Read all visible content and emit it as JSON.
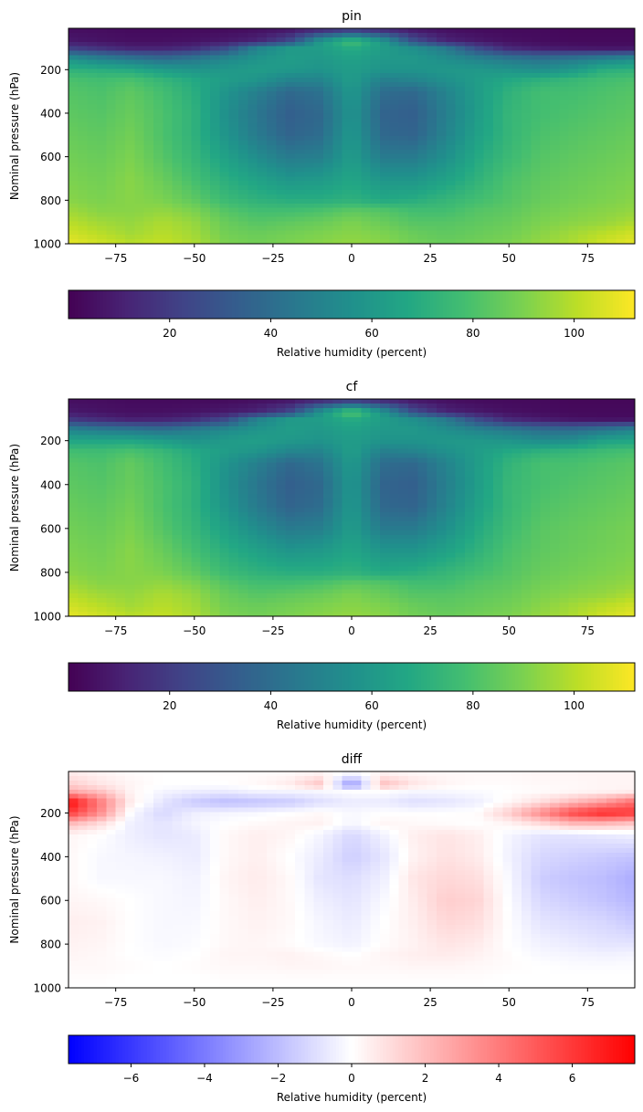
{
  "chart_data": [
    {
      "type": "heatmap",
      "title": "pin",
      "xlabel": "",
      "ylabel": "Nominal pressure (hPa)",
      "xlim": [
        -90,
        90
      ],
      "ylim": [
        1000,
        10
      ],
      "y_inverted": true,
      "xticks": [
        -75,
        -50,
        -25,
        0,
        25,
        50,
        75
      ],
      "yticks": [
        200,
        400,
        600,
        800,
        1000
      ],
      "colormap": "viridis",
      "colorbar": {
        "orientation": "horizontal",
        "label": "Relative humidity (percent)",
        "range": [
          0,
          112
        ],
        "ticks": [
          20,
          40,
          60,
          80,
          100
        ]
      },
      "grid": false,
      "pressure_levels": [
        10,
        70,
        100,
        150,
        200,
        250,
        300,
        400,
        500,
        600,
        700,
        800,
        850,
        900,
        950,
        1000
      ],
      "latitudes": [
        -90,
        -80,
        -70,
        -60,
        -50,
        -40,
        -30,
        -20,
        -10,
        0,
        10,
        20,
        30,
        40,
        50,
        60,
        70,
        80,
        90
      ],
      "values": [
        [
          4,
          4,
          3,
          3,
          3,
          3,
          4,
          5,
          8,
          12,
          8,
          5,
          4,
          3,
          3,
          3,
          2,
          2,
          2
        ],
        [
          8,
          6,
          5,
          5,
          6,
          8,
          12,
          25,
          60,
          80,
          60,
          28,
          12,
          8,
          5,
          4,
          3,
          3,
          3
        ],
        [
          20,
          15,
          10,
          10,
          14,
          25,
          50,
          60,
          62,
          70,
          62,
          55,
          45,
          25,
          12,
          8,
          6,
          5,
          5
        ],
        [
          58,
          50,
          45,
          40,
          45,
          52,
          58,
          62,
          60,
          64,
          60,
          60,
          55,
          50,
          45,
          42,
          45,
          50,
          55
        ],
        [
          72,
          70,
          68,
          62,
          58,
          60,
          62,
          60,
          58,
          62,
          58,
          58,
          60,
          60,
          58,
          55,
          60,
          70,
          72
        ],
        [
          80,
          78,
          80,
          74,
          68,
          62,
          58,
          50,
          50,
          62,
          48,
          50,
          56,
          62,
          68,
          72,
          75,
          78,
          80
        ],
        [
          82,
          80,
          84,
          78,
          70,
          58,
          48,
          38,
          42,
          60,
          40,
          38,
          50,
          62,
          72,
          78,
          78,
          80,
          82
        ],
        [
          84,
          82,
          86,
          80,
          72,
          56,
          44,
          34,
          38,
          58,
          36,
          34,
          48,
          62,
          74,
          78,
          80,
          82,
          84
        ],
        [
          86,
          84,
          88,
          80,
          72,
          58,
          46,
          36,
          40,
          60,
          38,
          36,
          50,
          64,
          74,
          80,
          82,
          84,
          86
        ],
        [
          88,
          86,
          90,
          82,
          74,
          64,
          54,
          46,
          48,
          62,
          46,
          46,
          56,
          68,
          76,
          82,
          84,
          86,
          88
        ],
        [
          90,
          88,
          92,
          86,
          78,
          70,
          64,
          58,
          60,
          66,
          58,
          58,
          64,
          72,
          80,
          84,
          86,
          88,
          90
        ],
        [
          92,
          90,
          92,
          90,
          84,
          76,
          72,
          70,
          70,
          72,
          68,
          70,
          74,
          78,
          82,
          86,
          88,
          90,
          92
        ],
        [
          96,
          92,
          92,
          94,
          90,
          82,
          78,
          78,
          80,
          84,
          82,
          78,
          78,
          82,
          84,
          88,
          90,
          92,
          94
        ],
        [
          100,
          96,
          94,
          98,
          94,
          86,
          82,
          84,
          86,
          90,
          86,
          82,
          82,
          84,
          86,
          90,
          92,
          94,
          98
        ],
        [
          104,
          100,
          96,
          100,
          96,
          88,
          86,
          88,
          90,
          92,
          90,
          86,
          84,
          86,
          88,
          92,
          96,
          100,
          104
        ],
        [
          108,
          104,
          100,
          102,
          98,
          90,
          88,
          90,
          92,
          94,
          92,
          88,
          86,
          88,
          90,
          94,
          98,
          104,
          108
        ]
      ]
    },
    {
      "type": "heatmap",
      "title": "cf",
      "xlabel": "",
      "ylabel": "Nominal pressure (hPa)",
      "xlim": [
        -90,
        90
      ],
      "ylim": [
        1000,
        10
      ],
      "y_inverted": true,
      "xticks": [
        -75,
        -50,
        -25,
        0,
        25,
        50,
        75
      ],
      "yticks": [
        200,
        400,
        600,
        800,
        1000
      ],
      "colormap": "viridis",
      "colorbar": {
        "orientation": "horizontal",
        "label": "Relative humidity (percent)",
        "range": [
          0,
          112
        ],
        "ticks": [
          20,
          40,
          60,
          80,
          100
        ]
      },
      "grid": false,
      "pressure_levels": [
        10,
        70,
        100,
        150,
        200,
        250,
        300,
        400,
        500,
        600,
        700,
        800,
        850,
        900,
        950,
        1000
      ],
      "latitudes": [
        -90,
        -80,
        -70,
        -60,
        -50,
        -40,
        -30,
        -20,
        -10,
        0,
        10,
        20,
        30,
        40,
        50,
        60,
        70,
        80,
        90
      ],
      "values": [
        [
          4,
          4,
          3,
          3,
          3,
          3,
          4,
          5,
          8,
          12,
          8,
          5,
          4,
          3,
          3,
          3,
          2,
          2,
          2
        ],
        [
          8,
          6,
          5,
          5,
          6,
          8,
          12,
          24,
          58,
          84,
          58,
          27,
          12,
          8,
          5,
          4,
          3,
          3,
          3
        ],
        [
          18,
          13,
          9,
          10,
          14,
          24,
          49,
          60,
          62,
          70,
          62,
          55,
          45,
          25,
          12,
          8,
          5,
          4,
          4
        ],
        [
          50,
          46,
          44,
          41,
          47,
          53,
          58,
          62,
          60,
          64,
          60,
          60,
          55,
          50,
          45,
          40,
          39,
          44,
          50
        ],
        [
          66,
          66,
          66,
          62,
          57,
          61,
          63,
          60,
          58,
          62,
          58,
          58,
          60,
          60,
          58,
          54,
          55,
          64,
          66
        ],
        [
          78,
          77,
          80,
          75,
          68,
          62,
          58,
          51,
          50,
          63,
          48,
          50,
          56,
          62,
          68,
          72,
          74,
          77,
          79
        ],
        [
          82,
          80,
          85,
          78,
          70,
          58,
          48,
          38,
          43,
          61,
          40,
          38,
          50,
          62,
          73,
          79,
          79,
          81,
          83
        ],
        [
          84,
          82,
          86,
          80,
          72,
          56,
          44,
          34,
          38,
          59,
          36,
          34,
          48,
          62,
          75,
          79,
          81,
          83,
          85
        ],
        [
          86,
          84,
          88,
          80,
          72,
          58,
          46,
          36,
          40,
          60,
          38,
          36,
          50,
          64,
          75,
          81,
          83,
          85,
          87
        ],
        [
          88,
          86,
          90,
          82,
          74,
          64,
          54,
          46,
          48,
          62,
          46,
          46,
          56,
          68,
          77,
          83,
          85,
          87,
          89
        ],
        [
          90,
          88,
          92,
          86,
          78,
          70,
          64,
          58,
          60,
          66,
          58,
          58,
          64,
          72,
          80,
          84,
          86,
          88,
          90
        ],
        [
          92,
          90,
          92,
          90,
          84,
          76,
          72,
          70,
          70,
          72,
          68,
          70,
          74,
          78,
          82,
          86,
          88,
          90,
          92
        ],
        [
          96,
          92,
          92,
          94,
          90,
          82,
          78,
          78,
          80,
          84,
          82,
          78,
          78,
          82,
          84,
          88,
          90,
          92,
          94
        ],
        [
          100,
          96,
          94,
          98,
          94,
          86,
          82,
          84,
          86,
          90,
          86,
          82,
          82,
          84,
          86,
          90,
          92,
          94,
          98
        ],
        [
          104,
          100,
          96,
          100,
          96,
          88,
          86,
          88,
          90,
          92,
          90,
          86,
          84,
          86,
          88,
          92,
          96,
          100,
          104
        ],
        [
          108,
          104,
          100,
          102,
          98,
          90,
          88,
          90,
          92,
          94,
          92,
          88,
          86,
          88,
          90,
          94,
          98,
          104,
          108
        ]
      ]
    },
    {
      "type": "heatmap",
      "title": "diff",
      "xlabel": "",
      "ylabel": "Nominal pressure (hPa)",
      "xlim": [
        -90,
        90
      ],
      "ylim": [
        1000,
        10
      ],
      "y_inverted": true,
      "xticks": [
        -75,
        -50,
        -25,
        0,
        25,
        50,
        75
      ],
      "yticks": [
        200,
        400,
        600,
        800,
        1000
      ],
      "colormap": "bwr",
      "colorbar": {
        "orientation": "horizontal",
        "label": "Relative humidity (percent)",
        "range": [
          -7.7,
          7.7
        ],
        "ticks": [
          -6,
          -4,
          -2,
          0,
          2,
          4,
          6
        ]
      },
      "grid": false,
      "pressure_levels": [
        10,
        70,
        100,
        150,
        200,
        250,
        300,
        400,
        500,
        600,
        700,
        800,
        850,
        900,
        950,
        1000
      ],
      "latitudes": [
        -90,
        -80,
        -70,
        -60,
        -50,
        -40,
        -30,
        -20,
        -10,
        0,
        10,
        20,
        30,
        40,
        50,
        60,
        70,
        80,
        90
      ],
      "values": [
        [
          0.5,
          0.3,
          0.1,
          0.0,
          0.0,
          0.1,
          0.1,
          0.1,
          0.2,
          0.2,
          0.2,
          0.2,
          0.2,
          0.2,
          0.2,
          0.3,
          0.3,
          0.3,
          0.3
        ],
        [
          1.5,
          0.8,
          0.3,
          0.0,
          0.0,
          0.0,
          0.2,
          0.6,
          1.8,
          -3.5,
          2.0,
          0.8,
          0.3,
          0.1,
          0.1,
          0.2,
          0.2,
          0.3,
          0.3
        ],
        [
          2.5,
          1.8,
          0.3,
          -0.3,
          -0.5,
          -0.6,
          -0.3,
          -0.3,
          -0.2,
          0.0,
          0.0,
          -0.2,
          -0.2,
          -0.1,
          0.0,
          0.1,
          0.2,
          0.3,
          0.4
        ],
        [
          7.5,
          4.0,
          0.5,
          -0.8,
          -1.6,
          -2.0,
          -1.8,
          -1.6,
          -1.0,
          -0.6,
          -0.6,
          -1.0,
          -0.8,
          -0.5,
          0.2,
          1.0,
          2.0,
          3.0,
          4.5
        ],
        [
          6.0,
          3.5,
          -0.2,
          -1.2,
          -0.5,
          -0.3,
          -0.2,
          0.0,
          0.2,
          -0.2,
          0.0,
          0.0,
          0.0,
          0.1,
          1.5,
          3.5,
          5.5,
          6.5,
          6.0
        ],
        [
          2.0,
          1.0,
          -0.5,
          -0.8,
          -0.3,
          0.0,
          0.2,
          0.3,
          0.4,
          -0.3,
          0.3,
          0.2,
          0.1,
          0.0,
          0.3,
          1.0,
          2.0,
          2.0,
          1.5
        ],
        [
          0.3,
          0.0,
          -0.5,
          -0.8,
          -0.6,
          0.2,
          0.5,
          0.3,
          -0.3,
          -1.2,
          -0.4,
          0.5,
          0.8,
          0.5,
          -0.3,
          -0.8,
          -0.8,
          -0.6,
          -0.4
        ],
        [
          0.2,
          -0.2,
          -0.3,
          -0.4,
          -0.6,
          0.2,
          0.5,
          0.0,
          -0.6,
          -1.5,
          -0.8,
          0.4,
          0.9,
          0.6,
          -0.4,
          -1.2,
          -1.4,
          -1.6,
          -1.8
        ],
        [
          0.2,
          -0.2,
          -0.2,
          -0.2,
          -0.4,
          0.3,
          0.6,
          0.2,
          -0.8,
          -1.0,
          -0.5,
          0.8,
          1.2,
          1.0,
          -0.2,
          -1.5,
          -1.8,
          -2.0,
          -2.5
        ],
        [
          0.3,
          0.2,
          0.0,
          -0.2,
          -0.3,
          0.2,
          0.5,
          0.2,
          -0.5,
          -0.8,
          -0.2,
          0.6,
          1.5,
          1.3,
          -0.1,
          -1.2,
          -1.5,
          -1.8,
          -2.2
        ],
        [
          0.5,
          0.4,
          0.0,
          -0.2,
          -0.2,
          0.2,
          0.4,
          0.2,
          -0.3,
          -0.6,
          0.0,
          0.5,
          1.2,
          1.0,
          0.0,
          -0.8,
          -1.0,
          -1.2,
          -1.6
        ],
        [
          0.4,
          0.3,
          0.0,
          -0.2,
          -0.1,
          0.2,
          0.3,
          0.1,
          -0.2,
          -0.4,
          0.1,
          0.4,
          0.8,
          0.6,
          0.0,
          -0.4,
          -0.6,
          -0.8,
          -0.8
        ],
        [
          0.3,
          0.2,
          0.0,
          -0.1,
          0.0,
          0.3,
          0.3,
          0.4,
          0.2,
          0.0,
          0.3,
          0.5,
          0.6,
          0.4,
          0.1,
          -0.2,
          -0.3,
          -0.4,
          -0.3
        ],
        [
          0.2,
          0.2,
          0.1,
          0.0,
          0.1,
          0.2,
          0.2,
          0.3,
          0.3,
          0.2,
          0.2,
          0.3,
          0.3,
          0.2,
          0.1,
          0.0,
          -0.1,
          -0.1,
          -0.1
        ],
        [
          0.1,
          0.1,
          0.0,
          0.0,
          0.0,
          0.1,
          0.1,
          0.1,
          0.1,
          0.1,
          0.1,
          0.1,
          0.1,
          0.1,
          0.0,
          0.0,
          0.0,
          0.0,
          0.0
        ],
        [
          0.0,
          0.0,
          0.0,
          0.0,
          0.0,
          0.0,
          0.0,
          0.0,
          0.0,
          0.0,
          0.0,
          0.0,
          0.0,
          0.0,
          0.0,
          0.0,
          0.0,
          0.0,
          0.0
        ]
      ]
    }
  ]
}
